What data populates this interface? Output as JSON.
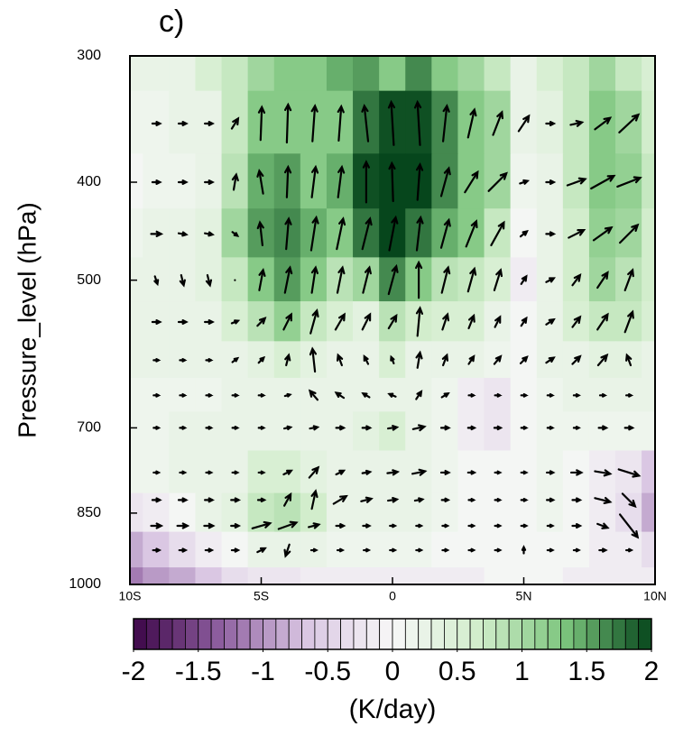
{
  "chart_data": {
    "type": "contour-vector",
    "title": "c)",
    "y_label": "Pressure_level (hPa)",
    "colorbar_label": "(K/day)",
    "x": [
      -10,
      -9,
      -8,
      -7,
      -6,
      -5,
      -4,
      -3,
      -2,
      -1,
      0,
      1,
      2,
      3,
      4,
      5,
      6,
      7,
      8,
      9,
      10
    ],
    "levels": [
      300,
      350,
      400,
      450,
      500,
      550,
      600,
      650,
      700,
      775,
      850,
      925,
      1000
    ],
    "values": [
      [
        0.3,
        0.3,
        0.3,
        0.5,
        0.8,
        1.0,
        1.3,
        1.2,
        1.4,
        1.5,
        1.3,
        1.6,
        1.2,
        1.0,
        0.8,
        0.3,
        0.5,
        0.8,
        1.0,
        0.8,
        0.5
      ],
      [
        0.1,
        0.1,
        0.2,
        0.3,
        0.8,
        1.2,
        1.3,
        1.2,
        1.3,
        1.8,
        1.9,
        1.9,
        1.6,
        1.2,
        1.0,
        0.2,
        0.4,
        0.8,
        1.2,
        1.0,
        0.6
      ],
      [
        0.0,
        0.1,
        0.1,
        0.3,
        0.9,
        1.4,
        1.5,
        1.3,
        1.4,
        1.9,
        2.0,
        2.0,
        1.6,
        1.3,
        1.0,
        0.1,
        0.3,
        0.8,
        1.3,
        1.1,
        0.7
      ],
      [
        0.1,
        0.2,
        0.3,
        0.4,
        1.0,
        1.5,
        1.6,
        1.4,
        1.3,
        1.7,
        2.0,
        1.8,
        1.4,
        1.2,
        0.8,
        0.0,
        0.2,
        0.6,
        1.1,
        1.0,
        0.6
      ],
      [
        0.2,
        0.2,
        0.3,
        0.4,
        0.8,
        1.3,
        1.5,
        1.2,
        0.9,
        1.0,
        1.6,
        1.2,
        0.9,
        0.7,
        0.5,
        -0.1,
        0.2,
        0.6,
        1.0,
        0.9,
        0.6
      ],
      [
        0.2,
        0.2,
        0.3,
        0.3,
        0.5,
        0.9,
        1.1,
        0.8,
        0.5,
        0.4,
        0.9,
        0.6,
        0.5,
        0.5,
        0.3,
        0.0,
        0.3,
        0.5,
        0.7,
        0.7,
        0.5
      ],
      [
        0.2,
        0.2,
        0.2,
        0.2,
        0.3,
        0.4,
        0.5,
        0.4,
        0.3,
        0.3,
        0.5,
        0.3,
        0.2,
        0.2,
        0.1,
        0.0,
        0.2,
        0.3,
        0.4,
        0.4,
        0.3
      ],
      [
        0.1,
        0.1,
        0.1,
        0.1,
        0.2,
        0.2,
        0.2,
        0.2,
        0.2,
        0.2,
        0.3,
        0.2,
        0.1,
        -0.2,
        -0.3,
        0.0,
        0.1,
        0.2,
        0.2,
        0.2,
        0.2
      ],
      [
        0.1,
        0.1,
        0.2,
        0.2,
        0.2,
        0.3,
        0.2,
        0.2,
        0.3,
        0.4,
        0.5,
        0.3,
        0.1,
        -0.2,
        -0.3,
        0.0,
        0.1,
        0.1,
        0.1,
        0.1,
        0.1
      ],
      [
        0.1,
        0.1,
        0.2,
        0.2,
        0.3,
        0.5,
        0.5,
        0.4,
        0.3,
        0.3,
        0.3,
        0.2,
        0.1,
        0.0,
        0.0,
        0.0,
        0.1,
        0.0,
        -0.1,
        -0.3,
        -0.6
      ],
      [
        -0.3,
        -0.2,
        0.0,
        0.2,
        0.4,
        0.8,
        0.9,
        0.6,
        0.3,
        0.2,
        0.2,
        0.2,
        0.1,
        0.0,
        0.0,
        0.0,
        0.1,
        0.0,
        -0.1,
        -0.4,
        -0.9
      ],
      [
        -0.8,
        -0.6,
        -0.4,
        -0.2,
        0.0,
        0.2,
        0.3,
        0.2,
        0.1,
        0.1,
        0.1,
        0.1,
        0.0,
        0.0,
        0.0,
        0.0,
        0.0,
        0.0,
        -0.1,
        -0.2,
        -0.4
      ],
      [
        -1.2,
        -1.0,
        -0.8,
        -0.6,
        -0.4,
        -0.3,
        -0.3,
        -0.2,
        -0.2,
        -0.2,
        -0.2,
        -0.1,
        -0.1,
        -0.1,
        0.0,
        0.0,
        0.0,
        -0.1,
        -0.1,
        -0.1,
        -0.2
      ]
    ],
    "vectors": {
      "x": [
        -9,
        -8,
        -7,
        -6,
        -5,
        -4,
        -3,
        -2,
        -1,
        0,
        1,
        2,
        3,
        4,
        5,
        6,
        7,
        8,
        9
      ],
      "levels": [
        350,
        400,
        450,
        500,
        550,
        600,
        650,
        700,
        775,
        825,
        875,
        925
      ],
      "u": [
        [
          0.6,
          0.6,
          0.6,
          0.5,
          0.1,
          0.1,
          0.2,
          0.2,
          -0.3,
          -0.2,
          -0.2,
          0.3,
          0.5,
          0.7,
          0.8,
          0.6,
          0.9,
          1.2,
          1.5
        ],
        [
          0.6,
          0.6,
          0.6,
          0.2,
          -0.3,
          0.1,
          0.3,
          0.3,
          0,
          -0.1,
          0.2,
          0.6,
          1.0,
          1.4,
          0.6,
          0.6,
          1.4,
          1.8,
          1.8
        ],
        [
          0.8,
          0.6,
          0.6,
          0.4,
          -0.2,
          0.2,
          0.4,
          0.5,
          0.6,
          0.5,
          0.3,
          0.6,
          0.8,
          1.0,
          0.5,
          0.6,
          1.2,
          1.4,
          1.4
        ],
        [
          0.2,
          0.2,
          0.2,
          0,
          0.3,
          0.4,
          0.3,
          0.4,
          0.5,
          0.6,
          0,
          0.5,
          0.5,
          0.5,
          0.4,
          0.6,
          0.6,
          0.8,
          0.6
        ],
        [
          0.6,
          0.6,
          0.6,
          0.5,
          0.6,
          0.6,
          0.5,
          0.7,
          0.6,
          0.6,
          0.2,
          0.4,
          0.4,
          0.4,
          0.4,
          0.6,
          0.6,
          0.8,
          0.6
        ],
        [
          0.4,
          0.4,
          0.4,
          0.4,
          0.4,
          0.2,
          -0.2,
          -0.3,
          -0.3,
          -0.2,
          0.2,
          0.3,
          0.4,
          0.5,
          0.5,
          0.6,
          0.6,
          0.7,
          -0.3
        ],
        [
          0.4,
          0.4,
          0.4,
          0.4,
          0.4,
          0.4,
          -0.6,
          -0.6,
          -0.5,
          -0.5,
          0.4,
          0.5,
          0.4,
          0.4,
          0.4,
          0.4,
          0.4,
          0.4,
          0.4
        ],
        [
          0.4,
          0.4,
          0.4,
          0.4,
          0.4,
          0.5,
          0.6,
          0.6,
          0.6,
          0.7,
          0.9,
          0.6,
          0.5,
          0.5,
          0.4,
          0.4,
          0.4,
          0.6,
          0.6
        ],
        [
          0.4,
          0.4,
          0.4,
          0.4,
          0.4,
          0.6,
          0.7,
          0.6,
          0.6,
          0.8,
          1.0,
          0.6,
          0.5,
          0.4,
          0.4,
          0.5,
          0.8,
          1.2,
          1.6
        ],
        [
          0.6,
          0.6,
          0.6,
          0.6,
          0.5,
          0.5,
          0.3,
          1.0,
          0.8,
          0.7,
          0.6,
          0.5,
          0.4,
          0.4,
          0.4,
          0.5,
          0.6,
          1.2,
          1.0
        ],
        [
          0.8,
          0.8,
          0.7,
          0.6,
          1.4,
          1.4,
          0.8,
          0.6,
          0.5,
          0.4,
          0.4,
          0.4,
          0.4,
          0.4,
          0.4,
          0.4,
          0.6,
          0.8,
          1.4
        ],
        [
          0.5,
          0.5,
          0.5,
          0.5,
          0.6,
          -0.3,
          0.4,
          0.4,
          0.4,
          0.4,
          0.4,
          0.4,
          0.4,
          0.4,
          0,
          0.4,
          0.4,
          0.5,
          0.4
        ]
      ],
      "w": [
        [
          0,
          0,
          0,
          0.8,
          2.6,
          3.0,
          2.8,
          2.7,
          2.8,
          3.4,
          3.4,
          2.8,
          2.2,
          1.8,
          1.2,
          0,
          0.2,
          0.9,
          1.4
        ],
        [
          0,
          0,
          0,
          1.2,
          1.8,
          2.4,
          2.4,
          2.4,
          3.2,
          3.0,
          2.8,
          2.2,
          1.6,
          1.4,
          0.2,
          0,
          0.5,
          1.0,
          0.7
        ],
        [
          0,
          -0.1,
          -0.1,
          -0.3,
          1.8,
          2.4,
          2.6,
          2.4,
          2.4,
          2.6,
          2.6,
          2.2,
          2.0,
          1.8,
          0.4,
          0,
          0.6,
          1.0,
          1.4
        ],
        [
          -0.6,
          -0.8,
          -0.8,
          0,
          1.6,
          2.0,
          2.0,
          2.0,
          2.0,
          2.2,
          2.8,
          2.0,
          1.8,
          1.6,
          0.6,
          0.3,
          0.8,
          1.2,
          1.6
        ],
        [
          0,
          0,
          0,
          0.2,
          0.6,
          1.2,
          1.8,
          1.2,
          1.2,
          1.0,
          2.2,
          1.2,
          1.0,
          0.8,
          0.6,
          0.4,
          0.8,
          1.2,
          1.6
        ],
        [
          0,
          0,
          0,
          0.3,
          0.4,
          0.8,
          1.8,
          0.8,
          0.6,
          0.5,
          1.2,
          0.8,
          0.6,
          0.6,
          0.5,
          0.4,
          0.6,
          0.8,
          0.8
        ],
        [
          0,
          0,
          0,
          0,
          0,
          0.1,
          0.7,
          0.4,
          0.3,
          0.2,
          0.6,
          0.3,
          0,
          0,
          0,
          0,
          0,
          0,
          0
        ],
        [
          0,
          0,
          0,
          0,
          0,
          0.1,
          0.1,
          0,
          0,
          0.1,
          0.2,
          0,
          0,
          0,
          0,
          0,
          0,
          0,
          0
        ],
        [
          0,
          0,
          0,
          0,
          0,
          0.3,
          0.8,
          0.3,
          0.1,
          0.1,
          0.2,
          0,
          0,
          0,
          0,
          0,
          0,
          -0.2,
          -0.5
        ],
        [
          0,
          0,
          0,
          0,
          0,
          0.9,
          1.4,
          0.6,
          0.2,
          0.1,
          0.1,
          0,
          0,
          0,
          0,
          0,
          0,
          -0.3,
          -1.0
        ],
        [
          0,
          0,
          0,
          0,
          0.4,
          0.5,
          0.2,
          0,
          0,
          0,
          0,
          0,
          0,
          0,
          0,
          0,
          0,
          -0.3,
          -1.8
        ],
        [
          0,
          0,
          0,
          0,
          0.3,
          -0.9,
          0,
          0,
          0,
          0,
          0,
          0,
          0,
          0,
          0.5,
          0,
          0,
          0,
          0
        ]
      ],
      "color": "#000000"
    },
    "xlim": [
      -10,
      10
    ],
    "xticks": [
      {
        "value": -10,
        "label": "10S"
      },
      {
        "value": -5,
        "label": "5S"
      },
      0,
      {
        "value": 5,
        "label": "5N"
      },
      {
        "value": 10,
        "label": "10N"
      }
    ],
    "ylim": [
      1000,
      300
    ],
    "yticks": [
      300,
      400,
      500,
      700,
      850,
      1000
    ],
    "y_scale": "log",
    "clim": [
      -2,
      2
    ],
    "cticks": [
      -2,
      -1.5,
      -1,
      -0.5,
      0,
      0.5,
      1,
      1.5,
      2
    ],
    "contour_interval": 0.1,
    "colormap": [
      "#3d0648",
      "#8e5fa0",
      "#d9c6e2",
      "#f7f7f7",
      "#d1edcb",
      "#7cc57d",
      "#06461c"
    ]
  }
}
